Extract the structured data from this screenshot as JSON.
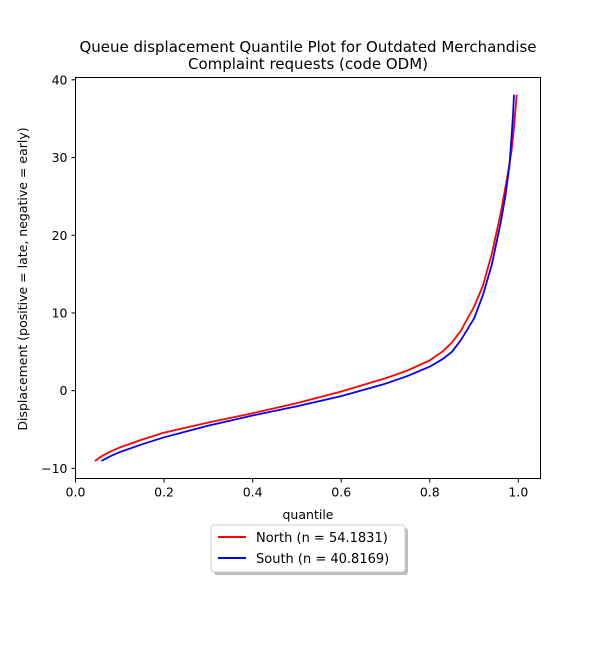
{
  "chart_data": {
    "type": "line",
    "title_line1": "Queue displacement Quantile Plot for Outdated Merchandise",
    "title_line2": "Complaint  requests (code ODM)",
    "xlabel": "quantile",
    "ylabel": "Displacement (positive = late, negative = early)",
    "xlim": [
      0.0,
      1.05
    ],
    "ylim": [
      -11.3,
      40.3
    ],
    "xticks": [
      0.0,
      0.2,
      0.4,
      0.6,
      0.8,
      1.0
    ],
    "xtick_labels": [
      "0.0",
      "0.2",
      "0.4",
      "0.6",
      "0.8",
      "1.0"
    ],
    "yticks": [
      -10,
      0,
      10,
      20,
      30,
      40
    ],
    "ytick_labels": [
      "−10",
      "0",
      "10",
      "20",
      "30",
      "40"
    ],
    "grid": false,
    "legend_position": "bottom-center-outside",
    "series": [
      {
        "name": "North (n = 54.1831)",
        "color": "#ff0000",
        "x": [
          0.045,
          0.06,
          0.08,
          0.1,
          0.15,
          0.2,
          0.3,
          0.4,
          0.5,
          0.6,
          0.7,
          0.75,
          0.8,
          0.83,
          0.85,
          0.87,
          0.9,
          0.92,
          0.94,
          0.96,
          0.975,
          0.985,
          0.99,
          0.993,
          0.996
        ],
        "y": [
          -9.0,
          -8.4,
          -7.8,
          -7.3,
          -6.3,
          -5.4,
          -4.1,
          -2.9,
          -1.6,
          -0.1,
          1.6,
          2.6,
          3.9,
          5.1,
          6.2,
          7.7,
          10.8,
          13.5,
          17.6,
          22.8,
          27.5,
          31.0,
          33.8,
          35.8,
          38.0
        ]
      },
      {
        "name": "South (n = 40.8169)",
        "color": "#0000ff",
        "x": [
          0.06,
          0.08,
          0.1,
          0.15,
          0.2,
          0.3,
          0.4,
          0.5,
          0.6,
          0.7,
          0.75,
          0.8,
          0.83,
          0.85,
          0.87,
          0.9,
          0.92,
          0.94,
          0.95,
          0.96,
          0.97,
          0.98,
          0.985,
          0.988,
          0.99
        ],
        "y": [
          -9.0,
          -8.4,
          -7.9,
          -6.9,
          -6.0,
          -4.5,
          -3.2,
          -2.0,
          -0.7,
          0.9,
          1.9,
          3.1,
          4.1,
          5.0,
          6.5,
          9.3,
          12.3,
          16.2,
          18.9,
          21.6,
          24.8,
          29.0,
          33.0,
          35.5,
          38.0
        ]
      }
    ]
  }
}
